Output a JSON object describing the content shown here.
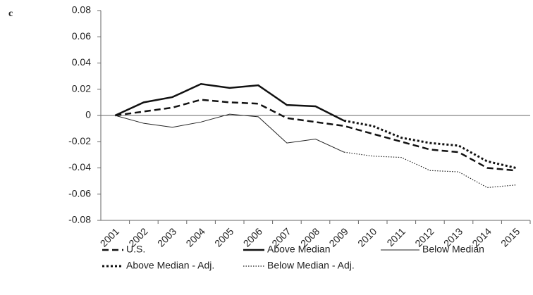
{
  "panel_label": "c",
  "chart_data": {
    "type": "line",
    "categories": [
      "2001",
      "2002",
      "2003",
      "2004",
      "2005",
      "2006",
      "2007",
      "2008",
      "2009",
      "2010",
      "2011",
      "2012",
      "2013",
      "2014",
      "2015"
    ],
    "series": [
      {
        "name": "U.S.",
        "color": "#111111",
        "style": "dashed",
        "width": 2.5,
        "values": [
          0,
          0.003,
          0.006,
          0.012,
          0.01,
          0.009,
          -0.002,
          -0.005,
          -0.008,
          -0.014,
          -0.02,
          -0.026,
          -0.028,
          -0.04,
          -0.042
        ]
      },
      {
        "name": "Above Median",
        "color": "#111111",
        "style": "solid",
        "width": 2.5,
        "values": [
          0,
          0.01,
          0.014,
          0.024,
          0.021,
          0.023,
          0.008,
          0.007,
          -0.004,
          null,
          null,
          null,
          null,
          null,
          null
        ]
      },
      {
        "name": "Below Median",
        "color": "#222222",
        "style": "solid",
        "width": 1,
        "values": [
          0,
          -0.006,
          -0.009,
          -0.005,
          0.001,
          -0.001,
          -0.021,
          -0.018,
          -0.028,
          null,
          null,
          null,
          null,
          null,
          null
        ]
      },
      {
        "name": "Above Median - Adj.",
        "color": "#111111",
        "style": "dotted",
        "width": 3,
        "values": [
          null,
          null,
          null,
          null,
          null,
          null,
          null,
          null,
          -0.004,
          -0.008,
          -0.017,
          -0.021,
          -0.023,
          -0.035,
          -0.04
        ]
      },
      {
        "name": "Below Median - Adj.",
        "color": "#222222",
        "style": "dotted",
        "width": 1.2,
        "values": [
          null,
          null,
          null,
          null,
          null,
          null,
          null,
          null,
          -0.028,
          -0.031,
          -0.032,
          -0.042,
          -0.043,
          -0.055,
          -0.053
        ]
      }
    ],
    "ylim": [
      -0.08,
      0.08
    ],
    "yticks": [
      -0.08,
      -0.06,
      -0.04,
      -0.02,
      0,
      0.02,
      0.04,
      0.06,
      0.08
    ]
  }
}
